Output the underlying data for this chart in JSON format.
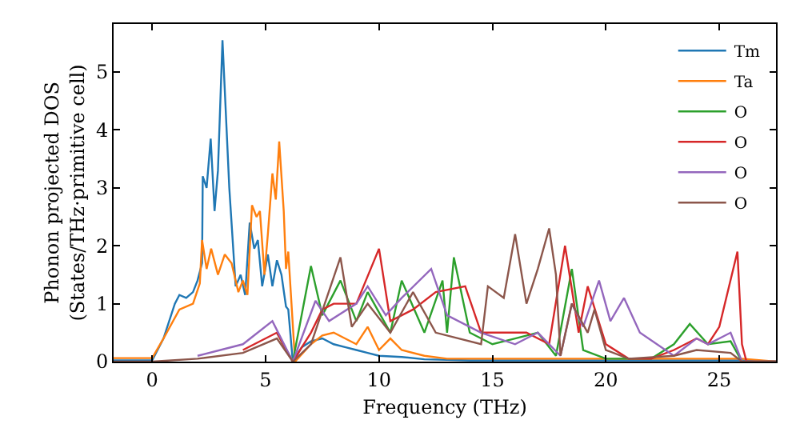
{
  "chart_data": {
    "type": "line",
    "xlabel": "Frequency (THz)",
    "ylabel": "Phonon projected DOS\n(States/THz·primitive cell)",
    "xlim": [
      -1.7,
      27.5
    ],
    "ylim": [
      0,
      5.83
    ],
    "xticks": [
      0,
      5,
      10,
      15,
      20,
      25
    ],
    "yticks": [
      0,
      1,
      2,
      3,
      4,
      5
    ],
    "legend": "top right",
    "marker": "none",
    "line_style": "solid",
    "series": [
      {
        "name": "Tm",
        "color": "#1f77b4",
        "x": [
          -1.7,
          0,
          0.5,
          1.0,
          1.2,
          1.5,
          1.8,
          2.0,
          2.2,
          2.23,
          2.4,
          2.58,
          2.75,
          2.9,
          3.1,
          3.4,
          3.68,
          3.9,
          4.1,
          4.3,
          4.5,
          4.66,
          4.85,
          5.1,
          5.3,
          5.5,
          5.7,
          5.9,
          6.0,
          6.2,
          6.6,
          7.0,
          7.5,
          8.0,
          8.5,
          9.0,
          9.5,
          10.0,
          11.0,
          12.0,
          14.0,
          18.0,
          22.0,
          26.0,
          27.5
        ],
        "values": [
          0.02,
          0.02,
          0.4,
          1.0,
          1.15,
          1.1,
          1.2,
          1.4,
          1.7,
          3.2,
          3.0,
          3.85,
          2.6,
          3.3,
          5.55,
          3.0,
          1.3,
          1.5,
          1.15,
          2.4,
          1.95,
          2.1,
          1.3,
          1.85,
          1.3,
          1.75,
          1.5,
          0.95,
          0.9,
          0.0,
          0.25,
          0.35,
          0.4,
          0.3,
          0.25,
          0.2,
          0.15,
          0.1,
          0.08,
          0.04,
          0.02,
          0.02,
          0.02,
          0.02,
          0.0
        ]
      },
      {
        "name": "Ta",
        "color": "#ff7f0e",
        "x": [
          -1.7,
          0,
          0.5,
          1.2,
          1.8,
          2.1,
          2.2,
          2.4,
          2.6,
          2.9,
          3.2,
          3.5,
          3.8,
          4.0,
          4.2,
          4.4,
          4.6,
          4.75,
          4.95,
          5.1,
          5.3,
          5.45,
          5.6,
          5.8,
          5.9,
          6.0,
          6.3,
          7.0,
          7.5,
          8.0,
          8.5,
          9.0,
          9.5,
          10.0,
          10.5,
          11.0,
          12.0,
          13.0,
          16.0,
          20.0,
          24.0,
          26.0,
          27.5
        ],
        "values": [
          0.06,
          0.06,
          0.4,
          0.9,
          1.0,
          1.35,
          2.1,
          1.6,
          1.95,
          1.5,
          1.85,
          1.7,
          1.2,
          1.4,
          1.15,
          2.7,
          2.5,
          2.6,
          1.5,
          2.2,
          3.25,
          2.8,
          3.8,
          2.6,
          1.6,
          1.9,
          0.0,
          0.3,
          0.45,
          0.5,
          0.4,
          0.3,
          0.6,
          0.2,
          0.4,
          0.2,
          0.1,
          0.05,
          0.05,
          0.05,
          0.05,
          0.05,
          0.0
        ]
      },
      {
        "name": "O",
        "color": "#2ca02c",
        "x": [
          5.5,
          6.2,
          7.0,
          7.5,
          8.3,
          9.0,
          9.5,
          10.5,
          11.0,
          12.0,
          12.8,
          13.0,
          13.3,
          14.0,
          15.0,
          16.0,
          17.0,
          17.8,
          18.5,
          19.0,
          20.0,
          22.0,
          23.0,
          23.7,
          24.5,
          25.5,
          26.0,
          27.5
        ],
        "values": [
          0.5,
          0.0,
          1.65,
          0.8,
          1.4,
          0.7,
          1.2,
          0.5,
          1.4,
          0.5,
          1.4,
          0.5,
          1.8,
          0.5,
          0.3,
          0.4,
          0.5,
          0.1,
          1.6,
          0.2,
          0.05,
          0.05,
          0.3,
          0.65,
          0.3,
          0.35,
          0.0,
          0.0
        ]
      },
      {
        "name": "O",
        "color": "#d62728",
        "x": [
          4.0,
          5.5,
          6.2,
          7.0,
          7.5,
          8.0,
          9.0,
          10.0,
          10.5,
          11.5,
          12.5,
          13.8,
          14.5,
          15.5,
          16.5,
          17.5,
          18.2,
          18.8,
          19.2,
          20.0,
          21.0,
          22.0,
          23.0,
          24.0,
          24.5,
          25.0,
          25.8,
          26.0,
          26.2,
          27.5
        ],
        "values": [
          0.2,
          0.5,
          0.0,
          0.5,
          0.9,
          1.0,
          1.0,
          1.95,
          0.7,
          0.9,
          1.2,
          1.3,
          0.5,
          0.5,
          0.5,
          0.3,
          2.0,
          0.5,
          1.3,
          0.3,
          0.05,
          0.05,
          0.2,
          0.4,
          0.3,
          0.6,
          1.9,
          0.3,
          0.0,
          0.0
        ]
      },
      {
        "name": "O",
        "color": "#9467bd",
        "x": [
          2.0,
          4.0,
          5.3,
          6.2,
          7.2,
          7.8,
          9.0,
          9.5,
          10.3,
          11.0,
          12.3,
          13.0,
          14.5,
          16.0,
          17.0,
          18.0,
          18.5,
          19.0,
          19.7,
          20.2,
          20.8,
          21.5,
          23.0,
          24.0,
          24.5,
          25.5,
          26.0,
          27.5
        ],
        "values": [
          0.1,
          0.3,
          0.7,
          0.0,
          1.05,
          0.7,
          1.0,
          1.3,
          0.8,
          1.1,
          1.6,
          0.8,
          0.5,
          0.3,
          0.5,
          0.1,
          1.0,
          0.6,
          1.4,
          0.7,
          1.1,
          0.5,
          0.1,
          0.4,
          0.3,
          0.5,
          0.0,
          0.0
        ]
      },
      {
        "name": "O",
        "color": "#8c564b",
        "x": [
          -1.7,
          0,
          2.0,
          4.0,
          5.5,
          6.2,
          7.0,
          8.3,
          8.8,
          9.5,
          10.5,
          11.5,
          12.5,
          14.5,
          14.8,
          15.5,
          16.0,
          16.5,
          17.0,
          17.5,
          17.8,
          18.0,
          18.5,
          19.2,
          19.5,
          20.0,
          21.0,
          23.0,
          24.0,
          25.5,
          26.0,
          27.5
        ],
        "values": [
          0.0,
          0.0,
          0.05,
          0.15,
          0.4,
          0.0,
          0.3,
          1.8,
          0.6,
          1.0,
          0.5,
          1.2,
          0.5,
          0.3,
          1.3,
          1.1,
          2.2,
          1.0,
          1.6,
          2.3,
          1.5,
          0.1,
          1.0,
          0.5,
          0.9,
          0.2,
          0.05,
          0.1,
          0.2,
          0.15,
          0.0,
          0.0
        ]
      }
    ]
  }
}
